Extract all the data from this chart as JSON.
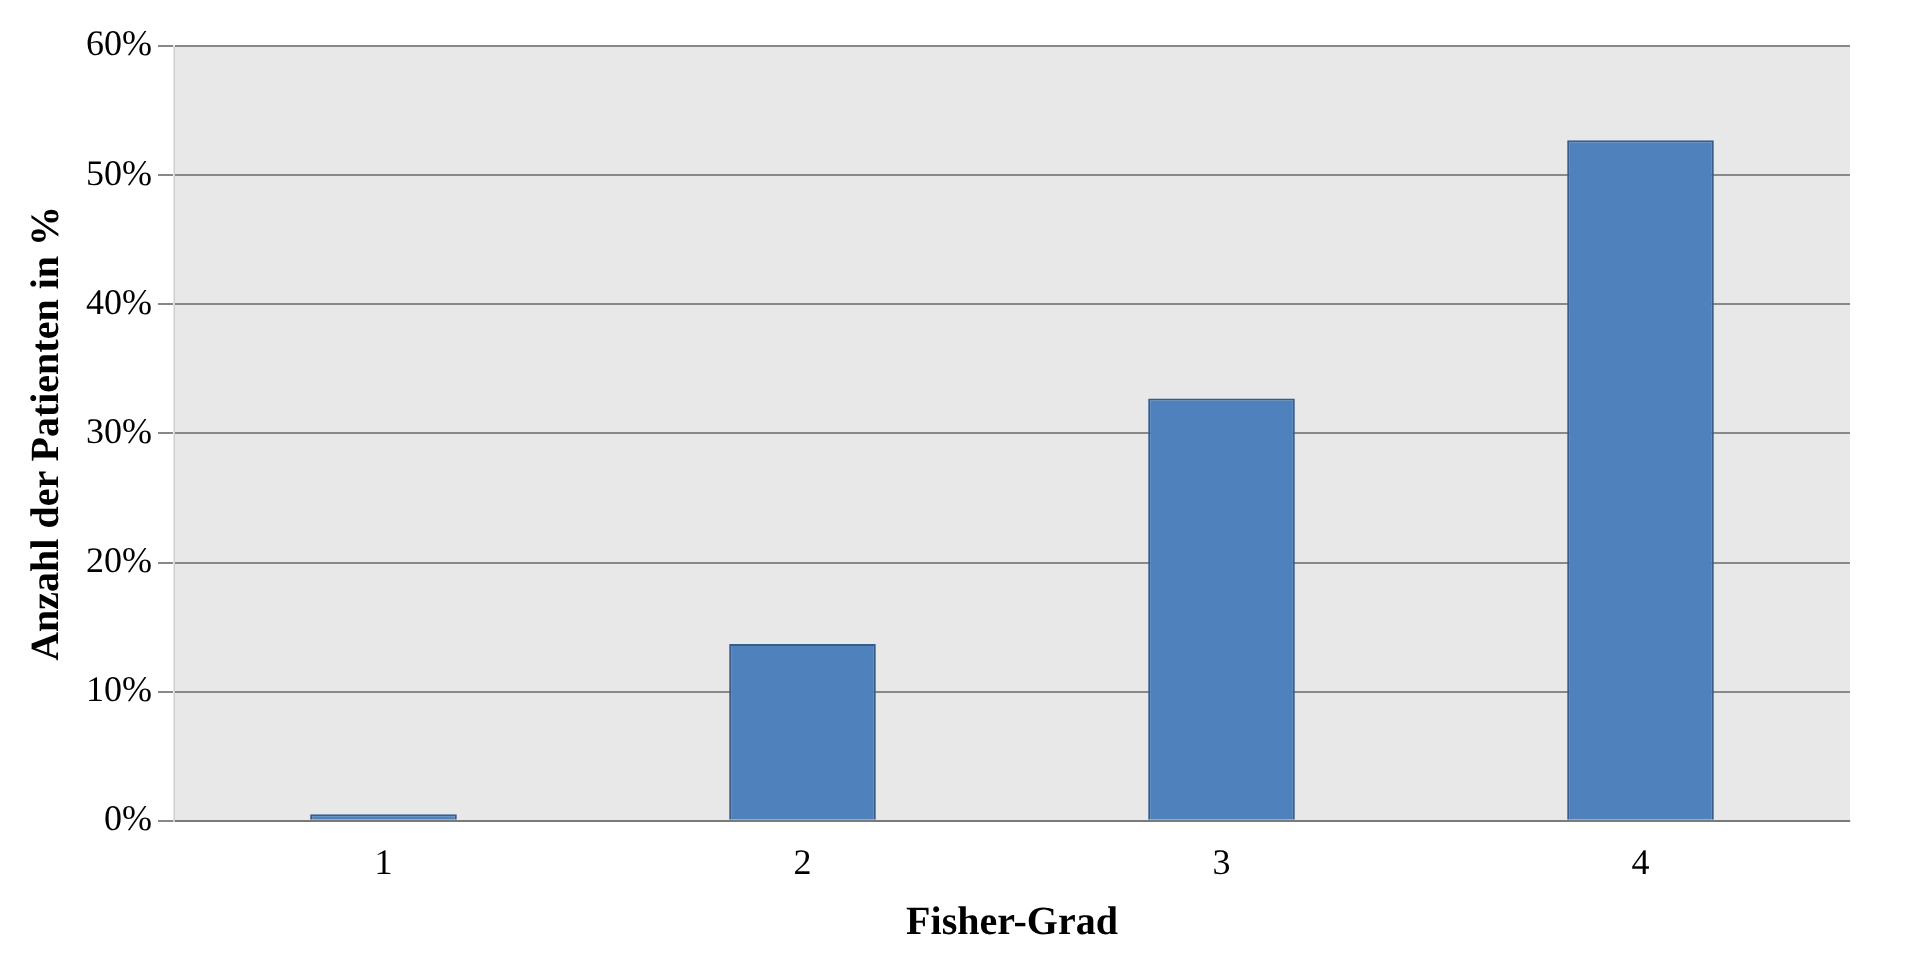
{
  "chart_data": {
    "type": "bar",
    "xlabel": "Fisher-Grad",
    "ylabel": "Anzahl der Patienten in %",
    "categories": [
      "1",
      "2",
      "3",
      "4"
    ],
    "values": [
      0.5,
      13.7,
      32.7,
      52.7
    ],
    "color": "#4f81bd",
    "ylim": [
      0,
      60
    ],
    "yticks": [
      {
        "value": 0,
        "label": "0%"
      },
      {
        "value": 10,
        "label": "10%"
      },
      {
        "value": 20,
        "label": "20%"
      },
      {
        "value": 30,
        "label": "30%"
      },
      {
        "value": 40,
        "label": "40%"
      },
      {
        "value": 50,
        "label": "50%"
      },
      {
        "value": 60,
        "label": "60%"
      }
    ],
    "grid": "y",
    "legend": false
  }
}
